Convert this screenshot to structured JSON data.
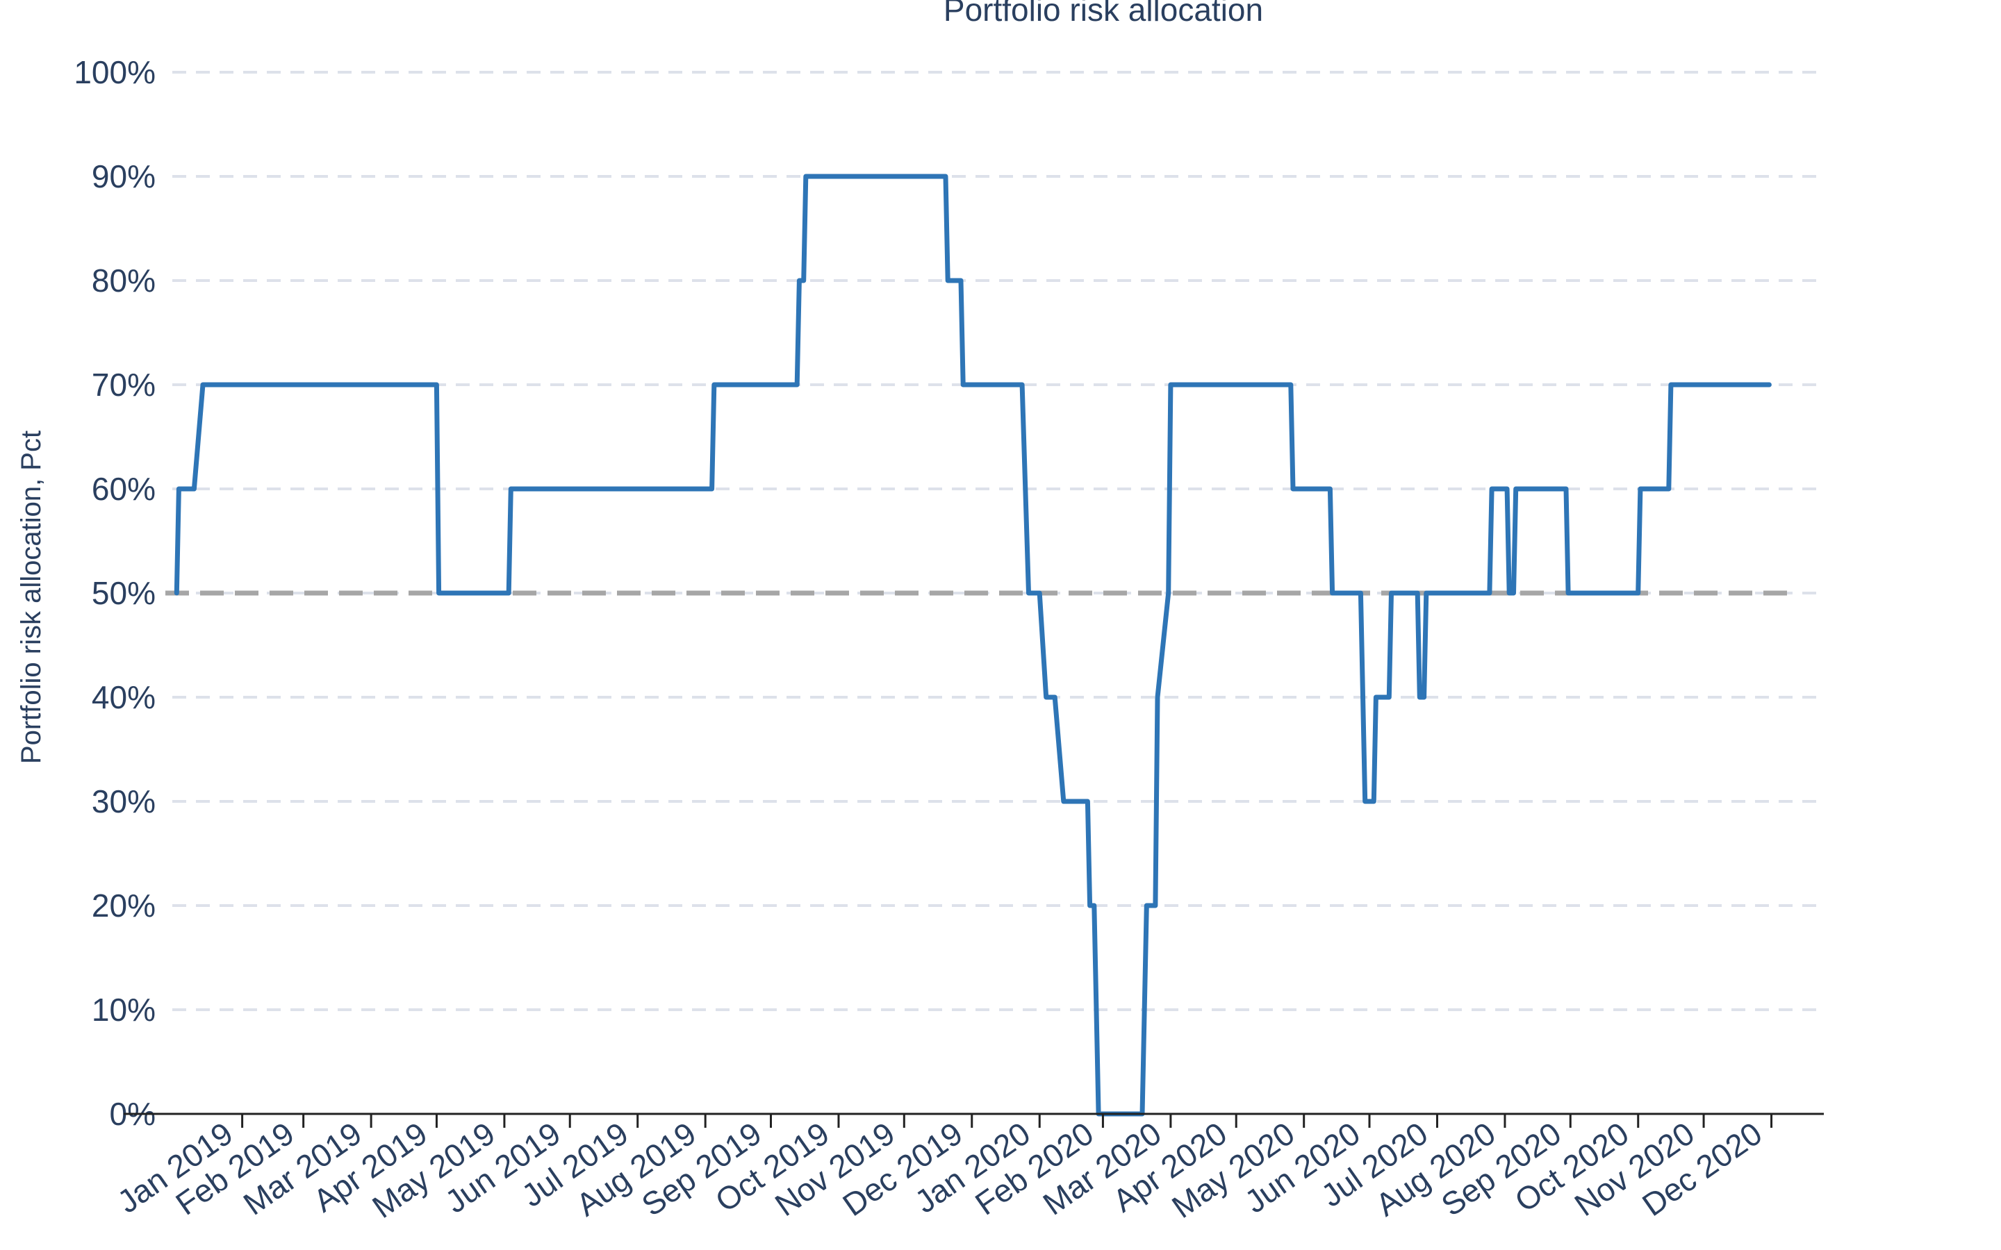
{
  "chart_data": {
    "type": "line",
    "title": "Portfolio risk allocation",
    "xlabel": "",
    "ylabel": "Portfolio risk allocation, Pct",
    "ylim": [
      0,
      100
    ],
    "y_ticks": [
      "0%",
      "10%",
      "20%",
      "30%",
      "40%",
      "50%",
      "60%",
      "70%",
      "80%",
      "90%",
      "100%"
    ],
    "x_ticks": [
      "Jan 2019",
      "Feb 2019",
      "Mar 2019",
      "Apr 2019",
      "May 2019",
      "Jun 2019",
      "Jul 2019",
      "Aug 2019",
      "Sep 2019",
      "Oct 2019",
      "Nov 2019",
      "Dec 2019",
      "Jan 2020",
      "Feb 2020",
      "Mar 2020",
      "Apr 2020",
      "May 2020",
      "Jun 2020",
      "Jul 2020",
      "Aug 2020",
      "Sep 2020",
      "Oct 2020",
      "Nov 2020",
      "Dec 2020"
    ],
    "grid": true,
    "reference_line": {
      "y": 50,
      "color": "#a6a6a6",
      "style": "dashed"
    },
    "series": [
      {
        "color": "#2e75b6",
        "x": [
          "2019-01-02",
          "2019-01-03",
          "2019-01-10",
          "2019-01-14",
          "2019-05-01",
          "2019-05-02",
          "2019-06-03",
          "2019-06-04",
          "2019-09-04",
          "2019-09-05",
          "2019-10-13",
          "2019-10-14",
          "2019-10-16",
          "2019-10-17",
          "2019-12-20",
          "2019-12-21",
          "2019-12-27",
          "2019-12-28",
          "2020-01-24",
          "2020-01-27",
          "2020-02-01",
          "2020-02-04",
          "2020-02-08",
          "2020-02-12",
          "2020-02-23",
          "2020-02-24",
          "2020-02-26",
          "2020-02-28",
          "2020-03-19",
          "2020-03-21",
          "2020-03-25",
          "2020-03-26",
          "2020-03-31",
          "2020-04-01",
          "2020-05-26",
          "2020-05-27",
          "2020-06-13",
          "2020-06-14",
          "2020-06-27",
          "2020-06-29",
          "2020-07-03",
          "2020-07-04",
          "2020-07-10",
          "2020-07-11",
          "2020-07-23",
          "2020-07-24",
          "2020-07-26",
          "2020-07-27",
          "2020-08-25",
          "2020-08-26",
          "2020-09-02",
          "2020-09-03",
          "2020-09-05",
          "2020-09-06",
          "2020-09-29",
          "2020-09-30",
          "2020-11-01",
          "2020-11-02",
          "2020-11-15",
          "2020-11-16",
          "2020-12-31"
        ],
        "y": [
          50,
          60,
          60,
          70,
          70,
          50,
          50,
          60,
          60,
          70,
          70,
          80,
          80,
          90,
          90,
          80,
          80,
          70,
          70,
          50,
          50,
          40,
          40,
          30,
          30,
          20,
          20,
          0,
          0,
          20,
          20,
          40,
          50,
          70,
          70,
          60,
          60,
          50,
          50,
          30,
          30,
          40,
          40,
          50,
          50,
          40,
          40,
          50,
          50,
          60,
          60,
          50,
          50,
          60,
          60,
          50,
          50,
          60,
          60,
          70,
          70
        ]
      }
    ]
  }
}
